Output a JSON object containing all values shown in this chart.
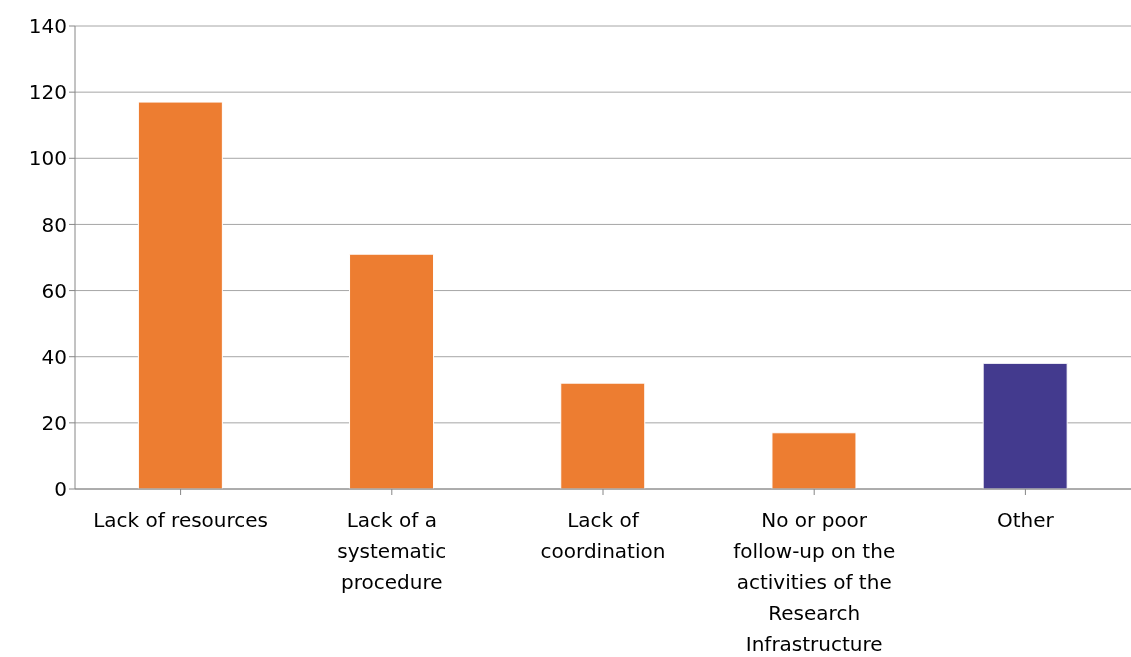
{
  "chart_data": {
    "type": "bar",
    "categories": [
      "Lack of resources",
      "Lack of a systematic procedure",
      "Lack of coordination",
      "No or poor follow-up on the activities of the Research Infrastructure",
      "Other"
    ],
    "values": [
      117,
      71,
      32,
      17,
      38
    ],
    "colors": [
      "#ed7d31",
      "#ed7d31",
      "#ed7d31",
      "#ed7d31",
      "#433a8e"
    ],
    "ylim": [
      0,
      140
    ],
    "yticks": [
      0,
      20,
      40,
      60,
      80,
      100,
      120,
      140
    ],
    "grid": "y",
    "legend": false
  }
}
